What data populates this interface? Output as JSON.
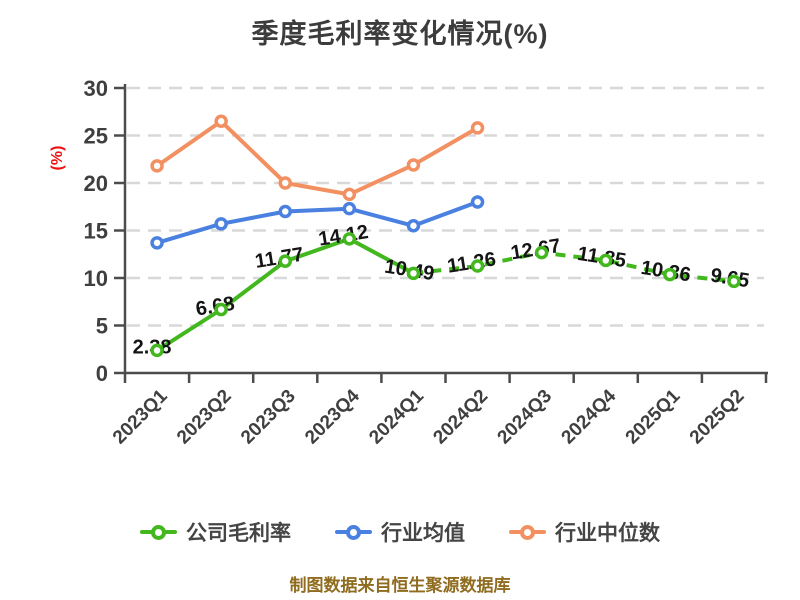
{
  "chart_data": {
    "type": "line",
    "title": "季度毛利率变化情况(%)",
    "categories": [
      "2023Q1",
      "2023Q2",
      "2023Q3",
      "2023Q4",
      "2024Q1",
      "2024Q2",
      "2024Q3",
      "2024Q4",
      "2025Q1",
      "2025Q2"
    ],
    "series": [
      {
        "name": "公司毛利率",
        "color": "#42b71e",
        "marker": "circle-white-fill",
        "values": [
          2.38,
          6.68,
          11.77,
          14.12,
          10.49,
          11.26,
          12.67,
          11.85,
          10.36,
          9.65
        ],
        "data_labels": true,
        "dashed_from_index": 4
      },
      {
        "name": "行业均值",
        "color": "#4a80e0",
        "marker": "circle-white-fill",
        "values": [
          13.7,
          15.7,
          17.0,
          17.3,
          15.5,
          18.0
        ],
        "data_labels": false,
        "dashed_from_index": null
      },
      {
        "name": "行业中位数",
        "color": "#f29061",
        "marker": "circle-white-fill",
        "values": [
          21.8,
          26.5,
          20.0,
          18.8,
          21.9,
          25.8
        ],
        "data_labels": false,
        "dashed_from_index": null
      }
    ],
    "y_axis": {
      "label": "(%)",
      "label_color": "#ee1111",
      "min": 0,
      "max": 30,
      "tick_step": 5,
      "ticks": [
        "0",
        "5",
        "10",
        "15",
        "20",
        "25",
        "30"
      ]
    },
    "grid": "horizontal-dashed",
    "legend_position": "bottom",
    "ylim": [
      0,
      30
    ]
  },
  "colors": {
    "grid": "#d8d8d8",
    "axis": "#4c4c4c",
    "tick_label": "#3f3f3f",
    "data_label": "#141414",
    "title": "#3c3c3c",
    "legend_text": "#454545",
    "background": "#ffffff"
  },
  "footer": {
    "text": "制图数据来自恒生聚源数据库",
    "color": "#8f6c1f"
  }
}
